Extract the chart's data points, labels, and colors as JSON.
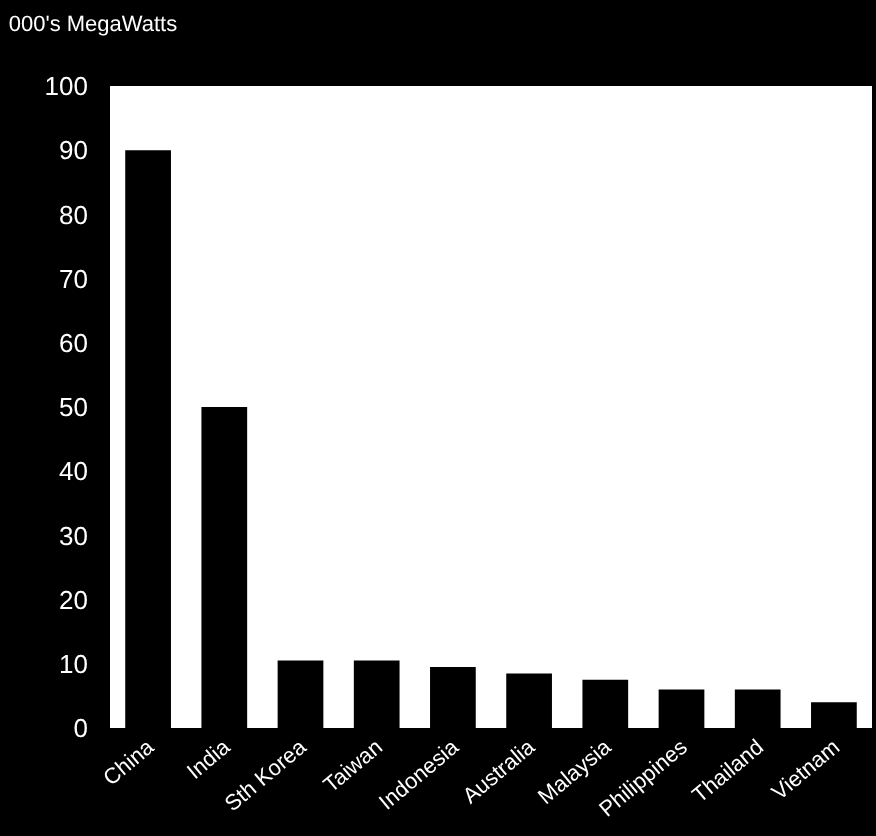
{
  "chart_data": {
    "type": "bar",
    "title": "000's MegaWatts",
    "categories": [
      "China",
      "India",
      "Sth Korea",
      "Taiwan",
      "Indonesia",
      "Australia",
      "Malaysia",
      "Philippines",
      "Thailand",
      "Vietnam"
    ],
    "values": [
      90,
      50,
      10.5,
      10.5,
      9.5,
      8.5,
      7.5,
      6,
      6,
      4
    ],
    "color": "#000000",
    "ylim": [
      0,
      100
    ],
    "yticks": [
      0,
      10,
      20,
      30,
      40,
      50,
      60,
      70,
      80,
      90,
      100
    ]
  }
}
